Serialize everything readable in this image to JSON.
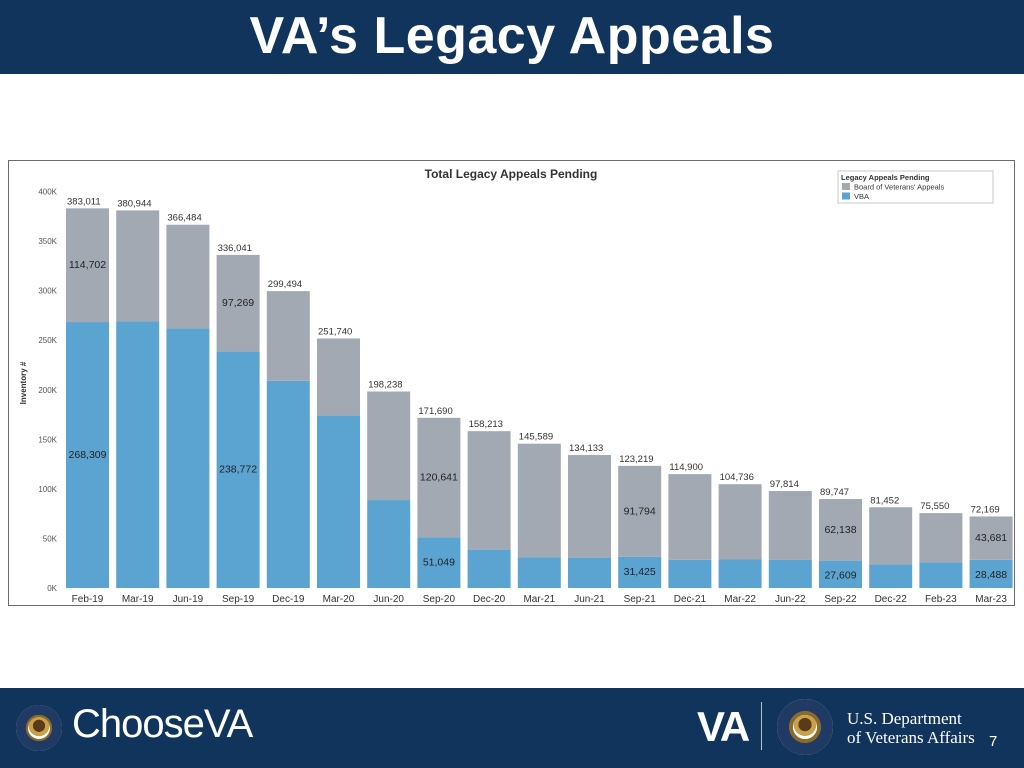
{
  "slide": {
    "title": "VA’s Legacy Appeals",
    "page_number": "7"
  },
  "footer": {
    "choose_prefix": "Choose",
    "choose_va": "VA",
    "va_mark": "VA",
    "dept_line1": "U.S. Department",
    "dept_line2": "of Veterans Affairs",
    "bg_color": "#10345c"
  },
  "colors": {
    "bva": "#a3a9b3",
    "vba": "#5ba4d2",
    "header_bg": "#10345c"
  },
  "chart_data": {
    "type": "bar",
    "stacked": true,
    "title": "Total Legacy Appeals Pending",
    "ylabel": "Inventory #",
    "xlabel": "",
    "ylim": [
      0,
      400000
    ],
    "yticks": [
      0,
      50000,
      100000,
      150000,
      200000,
      250000,
      300000,
      350000,
      400000
    ],
    "ytick_labels": [
      "0K",
      "50K",
      "100K",
      "150K",
      "200K",
      "250K",
      "300K",
      "350K",
      "400K"
    ],
    "grid": false,
    "legend_title": "Legacy Appeals Pending",
    "legend_position": "top-right",
    "categories": [
      "Feb-19",
      "Mar-19",
      "Jun-19",
      "Sep-19",
      "Dec-19",
      "Mar-20",
      "Jun-20",
      "Sep-20",
      "Dec-20",
      "Mar-21",
      "Jun-21",
      "Sep-21",
      "Dec-21",
      "Mar-22",
      "Jun-22",
      "Sep-22",
      "Dec-22",
      "Feb-23",
      "Mar-23"
    ],
    "totals": [
      383011,
      380944,
      366484,
      336041,
      299494,
      251740,
      198238,
      171690,
      158213,
      145589,
      134133,
      123219,
      114900,
      104736,
      97814,
      89747,
      81452,
      75550,
      72169
    ],
    "total_labels": [
      "383,011",
      "380,944",
      "366,484",
      "336,041",
      "299,494",
      "251,740",
      "198,238",
      "171,690",
      "158,213",
      "145,589",
      "134,133",
      "123,219",
      "114,900",
      "104,736",
      "97,814",
      "89,747",
      "81,452",
      "75,550",
      "72,169"
    ],
    "series": [
      {
        "name": "Board of Veterans' Appeals",
        "color": "#a3a9b3",
        "values": [
          114702,
          112000,
          104500,
          97269,
          90500,
          77500,
          109500,
          120641,
          119500,
          114500,
          103500,
          91794,
          86500,
          76000,
          69500,
          62138,
          57500,
          49500,
          43681
        ]
      },
      {
        "name": "VBA",
        "color": "#5ba4d2",
        "values": [
          268309,
          268944,
          261984,
          238772,
          208994,
          174240,
          88738,
          51049,
          38713,
          31089,
          30633,
          31425,
          28400,
          28736,
          28314,
          27609,
          23952,
          26050,
          28488
        ]
      }
    ],
    "segment_labels": [
      {
        "index": 0,
        "series": 0,
        "text": "114,702"
      },
      {
        "index": 0,
        "series": 1,
        "text": "268,309"
      },
      {
        "index": 3,
        "series": 0,
        "text": "97,269"
      },
      {
        "index": 3,
        "series": 1,
        "text": "238,772"
      },
      {
        "index": 7,
        "series": 0,
        "text": "120,641"
      },
      {
        "index": 7,
        "series": 1,
        "text": "51,049"
      },
      {
        "index": 11,
        "series": 0,
        "text": "91,794"
      },
      {
        "index": 11,
        "series": 1,
        "text": "31,425"
      },
      {
        "index": 15,
        "series": 0,
        "text": "62,138"
      },
      {
        "index": 15,
        "series": 1,
        "text": "27,609"
      },
      {
        "index": 18,
        "series": 0,
        "text": "43,681"
      },
      {
        "index": 18,
        "series": 1,
        "text": "28,488"
      }
    ]
  }
}
